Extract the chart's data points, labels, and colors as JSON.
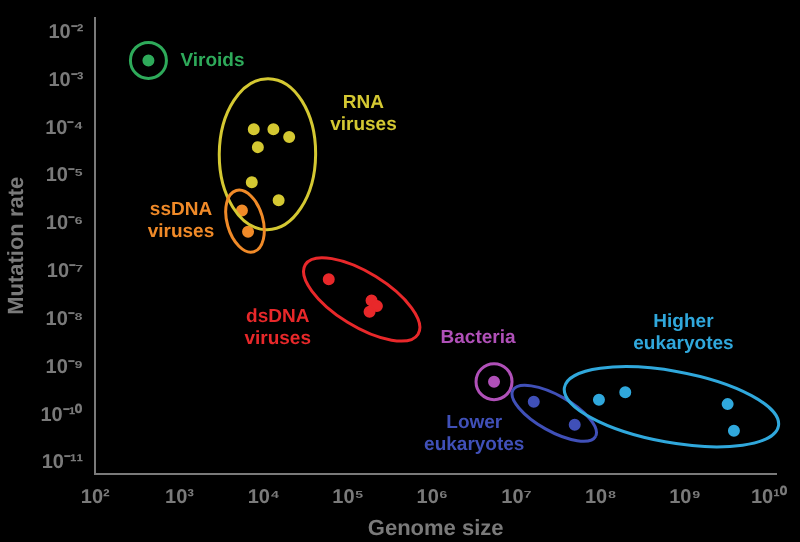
{
  "chart_data": {
    "type": "scatter",
    "xlabel": "Genome size",
    "ylabel": "Mutation rate",
    "log": "xy",
    "grid": false,
    "legend": false,
    "marker": "circle",
    "xlim": [
      100,
      12000000000
    ],
    "ylim": [
      6e-12,
      0.02
    ],
    "xticks": [
      {
        "value": 100,
        "label": "10²"
      },
      {
        "value": 1000,
        "label": "10³"
      },
      {
        "value": 10000,
        "label": "10⁴"
      },
      {
        "value": 100000,
        "label": "10⁵"
      },
      {
        "value": 1000000,
        "label": "10⁶"
      },
      {
        "value": 10000000,
        "label": "10⁷"
      },
      {
        "value": 100000000,
        "label": "10⁸"
      },
      {
        "value": 1000000000,
        "label": "10⁹"
      },
      {
        "value": 10000000000,
        "label": "10¹⁰"
      }
    ],
    "yticks": [
      {
        "value": 1e-11,
        "label": "10⁻¹¹"
      },
      {
        "value": 1e-10,
        "label": "10⁻¹⁰"
      },
      {
        "value": 1e-09,
        "label": "10⁻⁹"
      },
      {
        "value": 1e-08,
        "label": "10⁻⁸"
      },
      {
        "value": 1e-07,
        "label": "10⁻⁷"
      },
      {
        "value": 1e-06,
        "label": "10⁻⁶"
      },
      {
        "value": 1e-05,
        "label": "10⁻⁵"
      },
      {
        "value": 0.0001,
        "label": "10⁻⁴"
      },
      {
        "value": 0.001,
        "label": "10⁻³"
      },
      {
        "value": 0.01,
        "label": "10⁻²"
      }
    ],
    "series": [
      {
        "name": "Viroids",
        "color": "#2eaa5a",
        "x": [
          427
        ],
        "values": [
          0.0026
        ]
      },
      {
        "name": "RNA viruses",
        "color": "#d4c832",
        "x": [
          7600,
          13000,
          20000,
          8500,
          7200,
          15000
        ],
        "values": [
          9.5e-05,
          9.5e-05,
          6.5e-05,
          4e-05,
          7.4e-06,
          3.1e-06
        ]
      },
      {
        "name": "ssDNA viruses",
        "color": "#f08a28",
        "x": [
          5500,
          6500
        ],
        "values": [
          1.9e-06,
          6.8e-07
        ]
      },
      {
        "name": "dsDNA viruses",
        "color": "#e8282a",
        "x": [
          59000,
          190000,
          220000,
          180000
        ],
        "values": [
          6.9e-08,
          2.5e-08,
          1.9e-08,
          1.45e-08
        ]
      },
      {
        "name": "Bacteria",
        "color": "#b050b8",
        "x": [
          5400000
        ],
        "values": [
          5e-10
        ]
      },
      {
        "name": "Lower eukaryotes",
        "color": "#4050b8",
        "x": [
          16000000,
          49000000
        ],
        "values": [
          1.9e-10,
          6.3e-11
        ]
      },
      {
        "name": "Higher eukaryotes",
        "color": "#30a8dc",
        "x": [
          95000000,
          195000000,
          3200000000,
          3800000000
        ],
        "values": [
          2.1e-10,
          3e-10,
          1.7e-10,
          4.7e-11
        ]
      }
    ]
  }
}
